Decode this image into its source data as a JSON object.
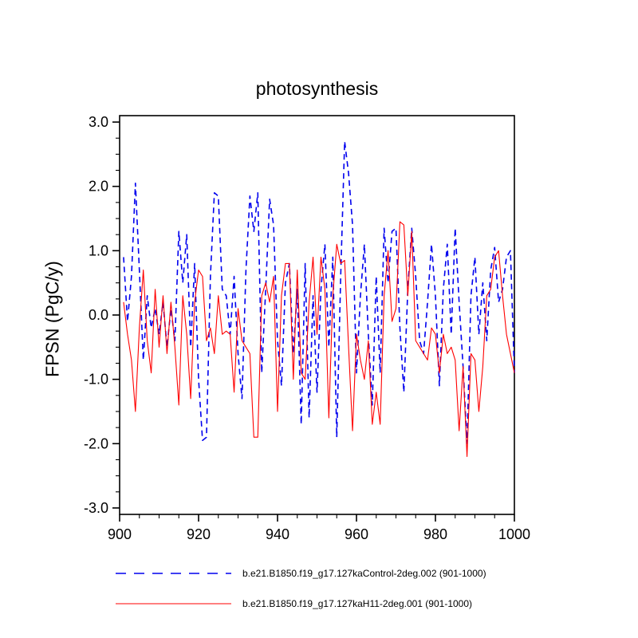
{
  "chart_data": {
    "type": "line",
    "title": "photosynthesis",
    "xlabel": "",
    "ylabel": "FPSN (PgC/y)",
    "xlim": [
      900,
      1000
    ],
    "ylim": [
      -3.1,
      3.1
    ],
    "grid": false,
    "legend_position": "below-left",
    "xticks": [
      {
        "v": 900,
        "label": "900"
      },
      {
        "v": 920,
        "label": "920"
      },
      {
        "v": 940,
        "label": "940"
      },
      {
        "v": 960,
        "label": "960"
      },
      {
        "v": 980,
        "label": "980"
      },
      {
        "v": 1000,
        "label": "1000"
      }
    ],
    "yticks": [
      {
        "v": 3,
        "label": "3.0"
      },
      {
        "v": 2,
        "label": "2.0"
      },
      {
        "v": 1,
        "label": "1.0"
      },
      {
        "v": 0,
        "label": "0.0"
      },
      {
        "v": -1,
        "label": "-1.0"
      },
      {
        "v": -2,
        "label": "-2.0"
      },
      {
        "v": -3,
        "label": "-3.0"
      }
    ],
    "x": {
      "start": 901,
      "step": 1
    },
    "series": [
      {
        "name": "b.e21.B1850.f19_g17.127kaControl-2deg.002 (901-1000)",
        "color": "#0000ee",
        "dash": "7,5",
        "width": 1.6,
        "values": [
          0.9,
          -0.1,
          0.6,
          2.05,
          0.7,
          -0.7,
          0.3,
          -0.2,
          0.1,
          -0.3,
          0.2,
          -0.5,
          0.1,
          -0.4,
          1.3,
          0.5,
          1.25,
          -0.5,
          0.8,
          -1.0,
          -1.95,
          -1.9,
          0.6,
          1.9,
          1.85,
          0.4,
          0.3,
          -0.3,
          0.6,
          -0.6,
          -1.3,
          0.7,
          1.85,
          1.3,
          1.9,
          -0.9,
          0.4,
          1.8,
          1.4,
          -0.4,
          -1.1,
          0.5,
          0.8,
          -0.6,
          0.4,
          -1.7,
          0.8,
          -1.6,
          0.3,
          -1.2,
          0.4,
          1.1,
          -0.5,
          0.9,
          -1.9,
          0.6,
          2.7,
          2.2,
          1.4,
          -0.9,
          0.3,
          1.1,
          -0.3,
          -1.4,
          0.6,
          -0.9,
          1.35,
          0.5,
          1.3,
          1.35,
          -0.2,
          -1.2,
          0.4,
          1.35,
          0.6,
          -0.4,
          -0.6,
          0.2,
          1.1,
          0.3,
          -1.1,
          0.4,
          1.1,
          -0.3,
          1.35,
          0.2,
          -0.8,
          -2.0,
          0.3,
          0.9,
          -0.3,
          0.5,
          -0.4,
          0.7,
          1.05,
          0.2,
          0.4,
          0.9,
          1.0,
          -0.9
        ]
      },
      {
        "name": "b.e21.B1850.f19_g17.127kaH11-2deg.001 (901-1000)",
        "color": "#ff0000",
        "dash": "",
        "width": 1.1,
        "values": [
          0.2,
          -0.3,
          -0.7,
          -1.5,
          -0.2,
          0.7,
          -0.4,
          -0.9,
          0.4,
          -0.5,
          0.3,
          -0.6,
          0.2,
          -0.5,
          -1.4,
          0.3,
          -0.3,
          -1.3,
          0.2,
          0.7,
          0.6,
          -0.4,
          -0.2,
          -0.6,
          0.3,
          -0.3,
          -0.25,
          -0.3,
          -1.2,
          0.1,
          -0.4,
          -0.5,
          -0.6,
          -1.9,
          -1.9,
          0.3,
          0.5,
          0.2,
          0.6,
          -1.5,
          0.3,
          0.8,
          0.8,
          -1.0,
          0.7,
          -0.9,
          -1.0,
          0.2,
          0.9,
          -0.3,
          0.9,
          0.4,
          -1.6,
          0.3,
          1.1,
          0.8,
          0.85,
          -0.5,
          -1.8,
          -0.3,
          -0.7,
          -1.0,
          -0.4,
          -1.7,
          -1.2,
          -1.7,
          0.3,
          1.0,
          -0.1,
          0.1,
          1.45,
          1.4,
          0.3,
          1.3,
          -0.4,
          -0.5,
          -0.6,
          -0.7,
          -0.2,
          -0.3,
          -0.9,
          -0.3,
          -0.6,
          -0.5,
          -0.7,
          -1.8,
          -0.8,
          -2.2,
          -0.6,
          -0.7,
          -1.5,
          -0.8,
          0.3,
          0.4,
          0.9,
          1.0,
          0.3,
          -0.3,
          -0.6,
          -0.9
        ]
      }
    ]
  }
}
